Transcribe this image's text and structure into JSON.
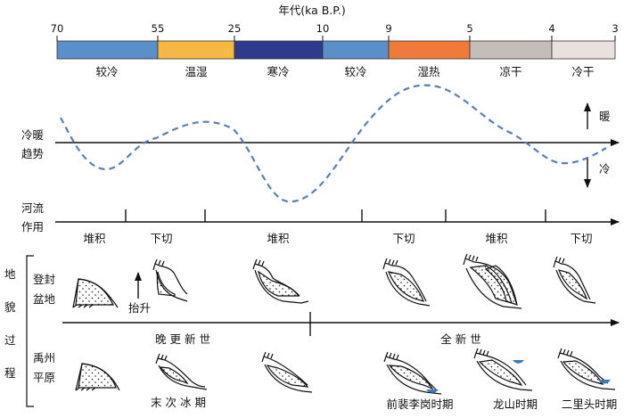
{
  "title": "年代(ka B.P.)",
  "timeline": {
    "ticks": [
      "70",
      "55",
      "25",
      "10",
      "9",
      "5",
      "4",
      "3"
    ],
    "periods": [
      {
        "label": "较冷",
        "color": "#5b8fc9"
      },
      {
        "label": "温湿",
        "color": "#f5b942"
      },
      {
        "label": "寒冷",
        "color": "#2e3a8c"
      },
      {
        "label": "较冷",
        "color": "#5b8fc9"
      },
      {
        "label": "湿热",
        "color": "#f07a3a"
      },
      {
        "label": "凉干",
        "color": "#c4bdb9"
      },
      {
        "label": "冷干",
        "color": "#e8e1de"
      }
    ]
  },
  "climate": {
    "label_line1": "冷暖",
    "label_line2": "趋势",
    "warm": "暖",
    "cold": "冷",
    "curve_color": "#5b7fb5"
  },
  "river": {
    "label_line1": "河流",
    "label_line2": "作用",
    "phases": [
      "堆积",
      "下切",
      "堆积",
      "下切",
      "堆积",
      "下切"
    ]
  },
  "landform": {
    "label": [
      "地",
      "貌",
      "过",
      "程"
    ],
    "dengfeng": [
      "登封",
      "盆地"
    ],
    "yuzhou": [
      "禹州",
      "平原"
    ],
    "uplift": "抬升",
    "epochs": [
      "晚 更 新 世",
      "全  新  世"
    ],
    "stages": [
      "末 次 冰 期",
      "前裴李岗时期",
      "龙山时期",
      "二里头时期"
    ]
  }
}
